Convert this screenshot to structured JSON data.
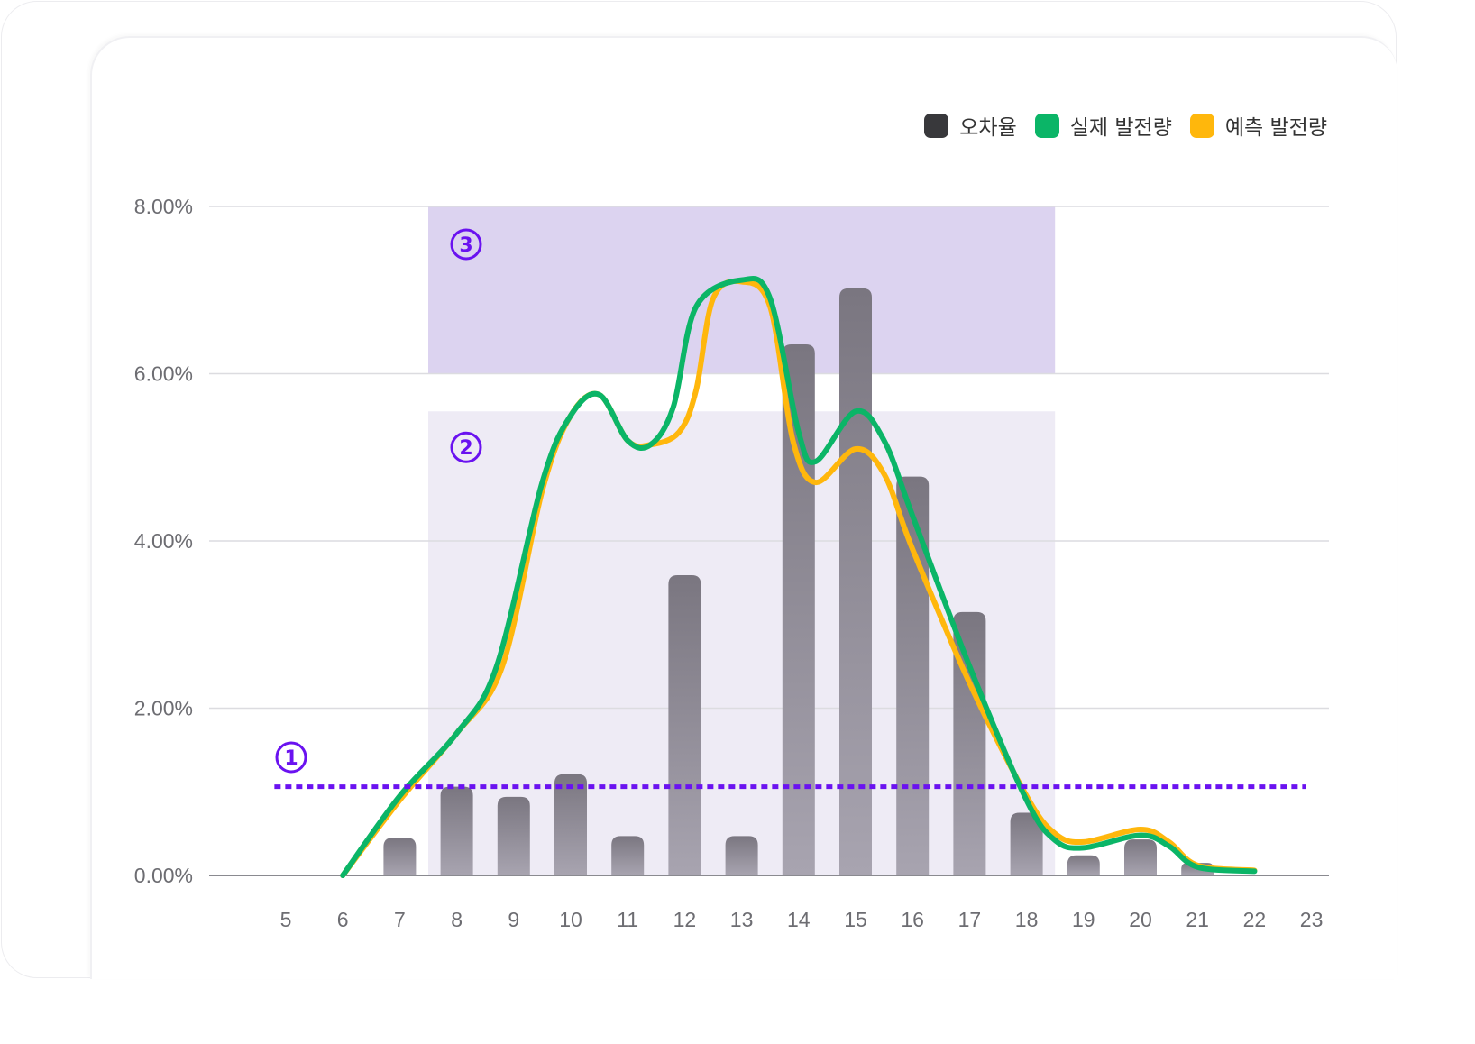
{
  "legend": [
    {
      "label": "오차율",
      "color": "#38383b"
    },
    {
      "label": "실제 발전량",
      "color": "#0bb567"
    },
    {
      "label": "예측 발전량",
      "color": "#ffb70c"
    }
  ],
  "chart_data": {
    "type": "bar+line",
    "x_ticks": [
      "5",
      "6",
      "7",
      "8",
      "9",
      "10",
      "11",
      "12",
      "13",
      "14",
      "15",
      "16",
      "17",
      "18",
      "19",
      "20",
      "21",
      "22",
      "23"
    ],
    "y_ticks": [
      "0.00%",
      "2.00%",
      "4.00%",
      "6.00%",
      "8.00%"
    ],
    "ylim": [
      0,
      8
    ],
    "xlim": [
      5,
      23
    ],
    "grid": true,
    "legend_position": "top-right",
    "bars": {
      "name": "오차율",
      "x": [
        7,
        8,
        9,
        10,
        11,
        12,
        13,
        14,
        15,
        16,
        17,
        18,
        19,
        20,
        21
      ],
      "values": [
        0.45,
        1.06,
        0.94,
        1.21,
        0.47,
        3.59,
        0.47,
        6.35,
        7.02,
        4.77,
        3.15,
        0.75,
        0.24,
        0.43,
        0.15
      ]
    },
    "series": [
      {
        "name": "예측 발전량",
        "color": "#ffb70c",
        "points": [
          [
            6,
            0
          ],
          [
            7,
            0.9
          ],
          [
            8,
            1.7
          ],
          [
            8.8,
            2.5
          ],
          [
            9.5,
            4.6
          ],
          [
            10,
            5.5
          ],
          [
            10.5,
            5.75
          ],
          [
            11,
            5.2
          ],
          [
            11.4,
            5.15
          ],
          [
            11.9,
            5.3
          ],
          [
            12.2,
            5.8
          ],
          [
            12.5,
            6.9
          ],
          [
            13,
            7.1
          ],
          [
            13.5,
            6.8
          ],
          [
            13.9,
            5.2
          ],
          [
            14.3,
            4.7
          ],
          [
            15,
            5.1
          ],
          [
            15.5,
            4.8
          ],
          [
            16,
            3.9
          ],
          [
            17,
            2.3
          ],
          [
            18,
            0.95
          ],
          [
            18.5,
            0.5
          ],
          [
            19,
            0.4
          ],
          [
            20,
            0.55
          ],
          [
            20.5,
            0.4
          ],
          [
            21,
            0.12
          ],
          [
            22,
            0.06
          ]
        ]
      },
      {
        "name": "실제 발전량",
        "color": "#0bb567",
        "points": [
          [
            6,
            0
          ],
          [
            7,
            0.95
          ],
          [
            8,
            1.7
          ],
          [
            8.7,
            2.5
          ],
          [
            9.5,
            4.7
          ],
          [
            10,
            5.5
          ],
          [
            10.5,
            5.75
          ],
          [
            11,
            5.2
          ],
          [
            11.4,
            5.15
          ],
          [
            11.8,
            5.6
          ],
          [
            12.2,
            6.8
          ],
          [
            13,
            7.12
          ],
          [
            13.5,
            6.9
          ],
          [
            14,
            5.3
          ],
          [
            14.3,
            4.95
          ],
          [
            15,
            5.55
          ],
          [
            15.5,
            5.2
          ],
          [
            16,
            4.3
          ],
          [
            17,
            2.5
          ],
          [
            18,
            0.9
          ],
          [
            18.5,
            0.42
          ],
          [
            19,
            0.33
          ],
          [
            20,
            0.48
          ],
          [
            20.5,
            0.35
          ],
          [
            21,
            0.1
          ],
          [
            22,
            0.05
          ]
        ]
      }
    ],
    "annotations": [
      {
        "label": "①",
        "type": "threshold-line",
        "y": 1.06,
        "x_range": [
          4.8,
          22.9
        ]
      },
      {
        "label": "②",
        "type": "region",
        "x_range": [
          7.5,
          18.5
        ],
        "y_range": [
          0,
          5.55
        ],
        "color": "#eeebf5"
      },
      {
        "label": "③",
        "type": "region",
        "x_range": [
          7.5,
          18.5
        ],
        "y_range": [
          6,
          8
        ],
        "color": "#dcd3f0"
      }
    ]
  }
}
